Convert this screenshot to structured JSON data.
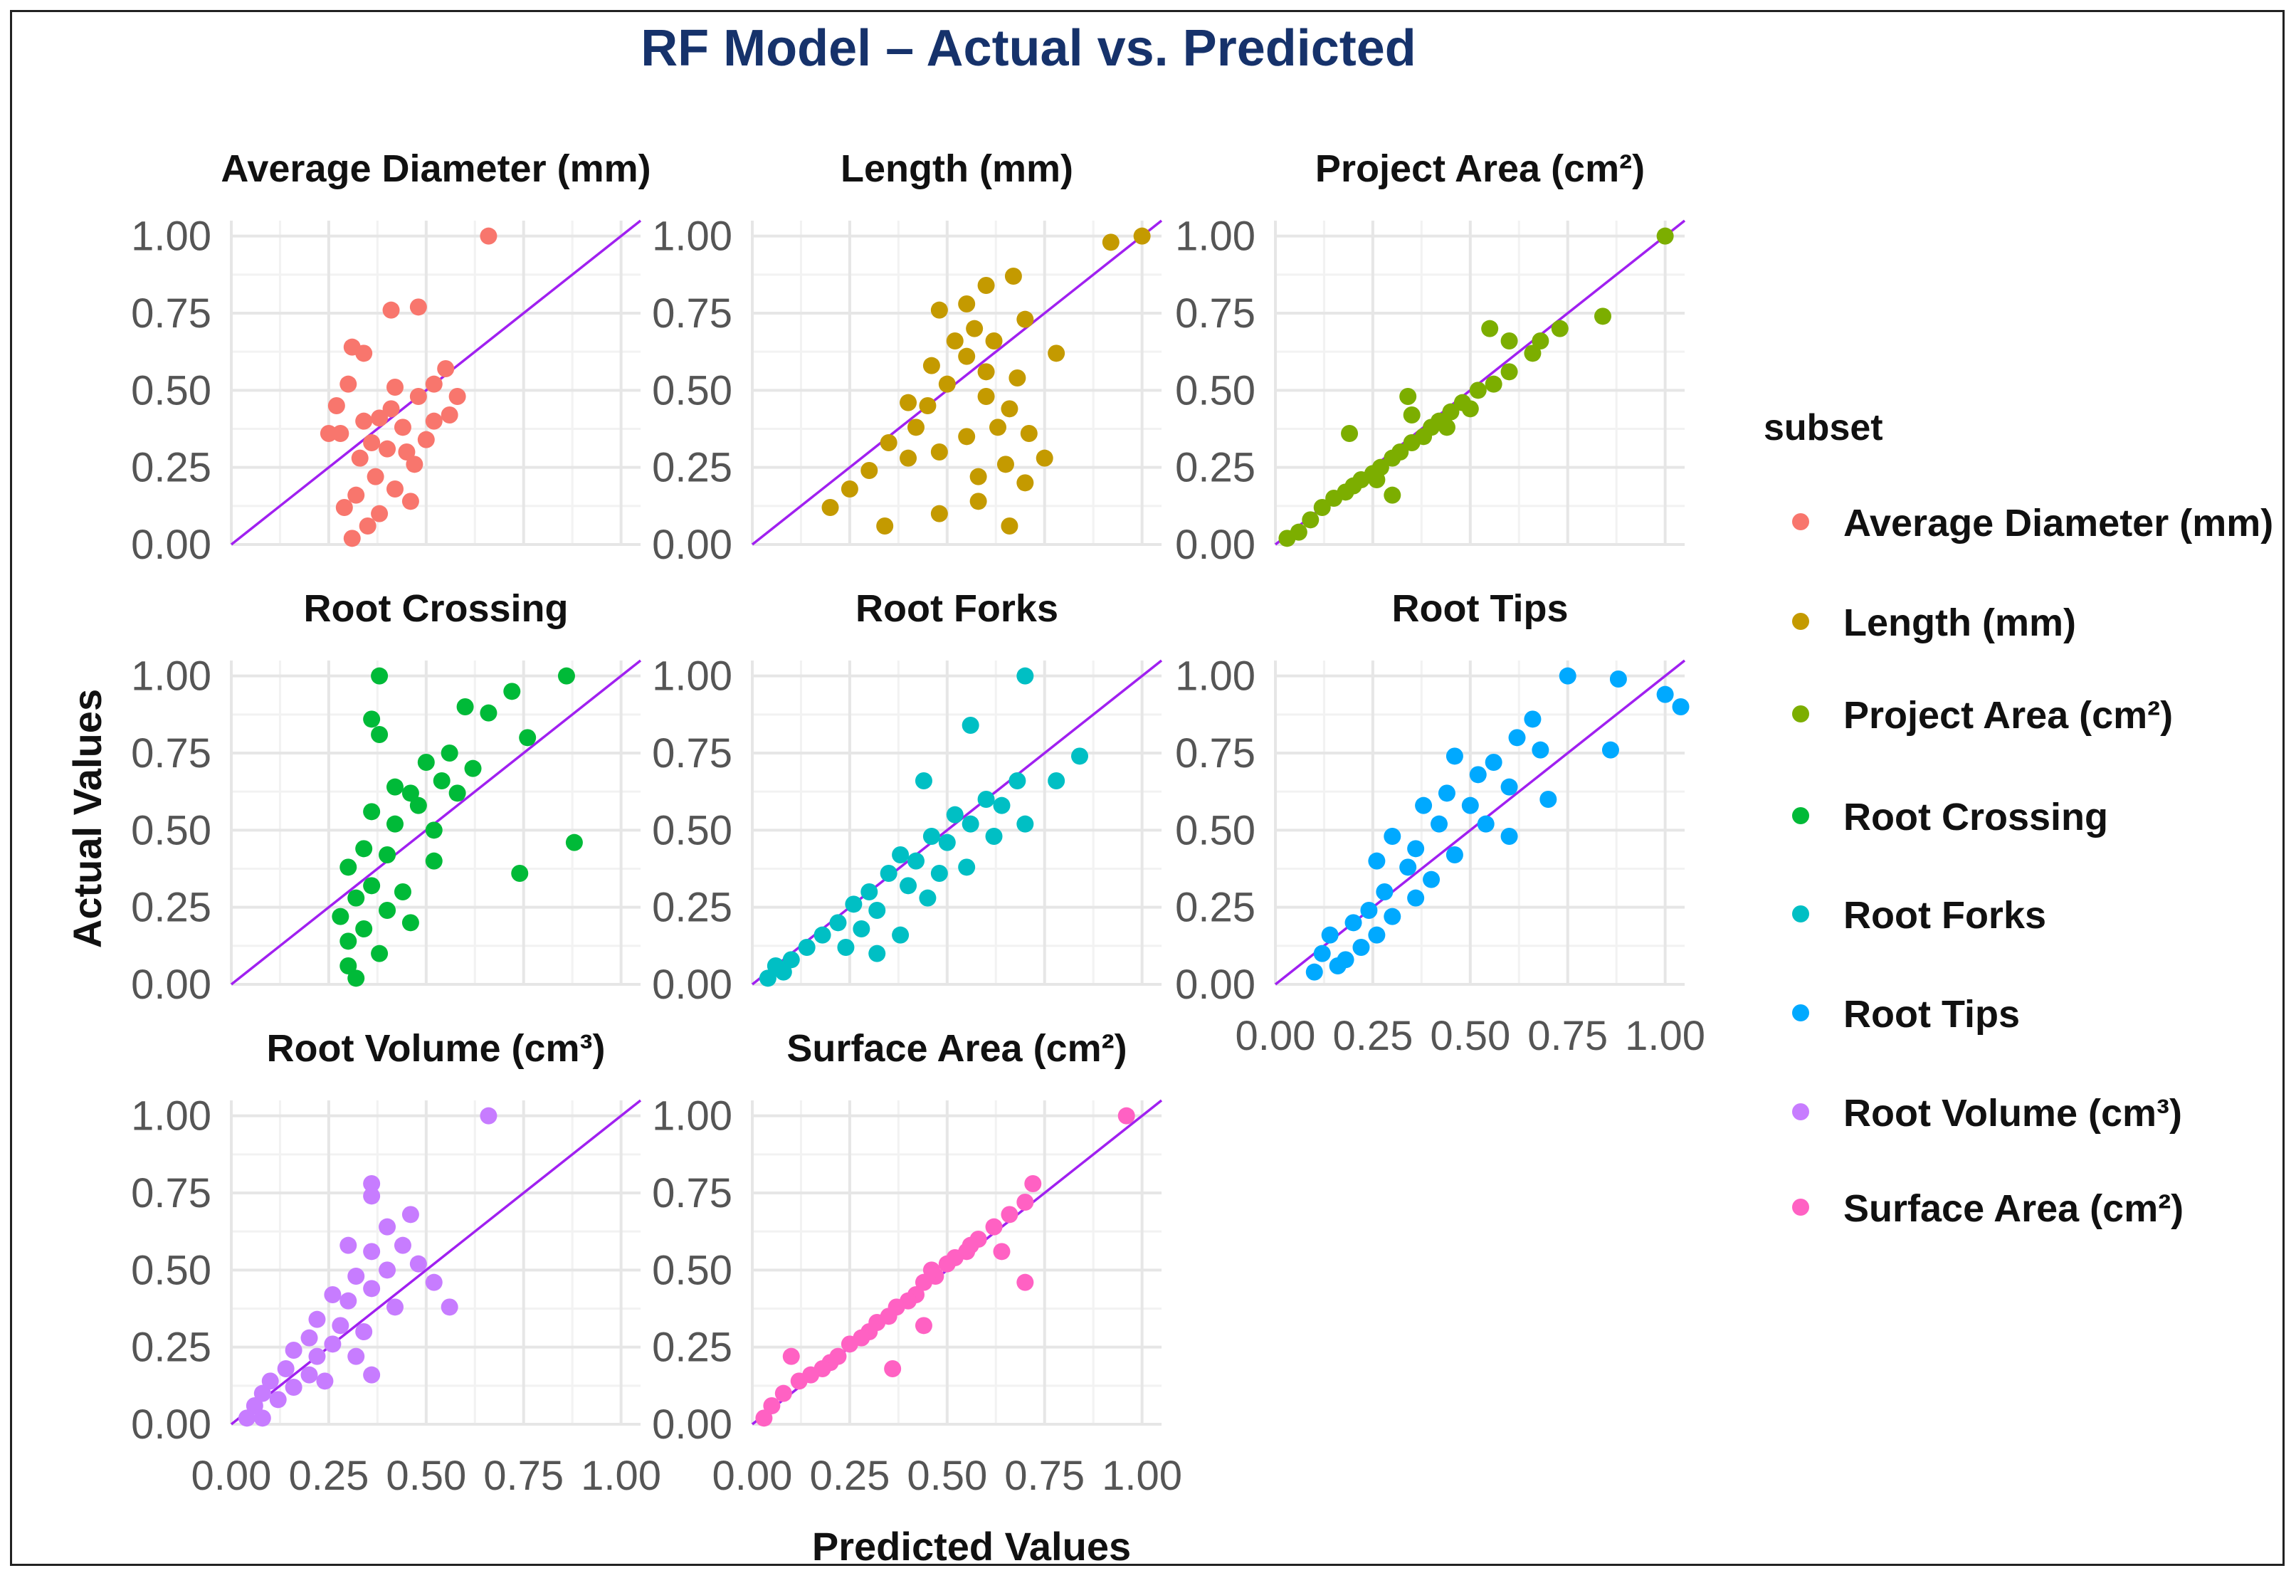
{
  "chart_data": {
    "type": "scatter",
    "title": "RF Model – Actual vs. Predicted",
    "xlabel": "Predicted Values",
    "ylabel": "Actual Values",
    "xlim": [
      0,
      1.05
    ],
    "ylim": [
      0,
      1.05
    ],
    "x_ticks": [
      "0.00",
      "0.25",
      "0.50",
      "0.75",
      "1.00"
    ],
    "y_ticks": [
      "0.00",
      "0.25",
      "0.50",
      "0.75",
      "1.00"
    ],
    "reference_line": {
      "type": "identity",
      "label": "y = x",
      "color": "#a020f0"
    },
    "legend": {
      "title": "subset",
      "placement": "right"
    },
    "series": [
      {
        "name": "Average Diameter (mm)",
        "color": "#f8766d",
        "points": [
          [
            0.66,
            1.0
          ],
          [
            0.41,
            0.76
          ],
          [
            0.48,
            0.77
          ],
          [
            0.31,
            0.64
          ],
          [
            0.34,
            0.62
          ],
          [
            0.42,
            0.51
          ],
          [
            0.48,
            0.48
          ],
          [
            0.55,
            0.57
          ],
          [
            0.27,
            0.45
          ],
          [
            0.3,
            0.52
          ],
          [
            0.38,
            0.41
          ],
          [
            0.44,
            0.38
          ],
          [
            0.36,
            0.33
          ],
          [
            0.4,
            0.31
          ],
          [
            0.33,
            0.28
          ],
          [
            0.45,
            0.3
          ],
          [
            0.5,
            0.34
          ],
          [
            0.28,
            0.36
          ],
          [
            0.25,
            0.36
          ],
          [
            0.37,
            0.22
          ],
          [
            0.42,
            0.18
          ],
          [
            0.32,
            0.16
          ],
          [
            0.46,
            0.14
          ],
          [
            0.35,
            0.06
          ],
          [
            0.31,
            0.02
          ],
          [
            0.38,
            0.1
          ],
          [
            0.52,
            0.4
          ],
          [
            0.56,
            0.42
          ],
          [
            0.58,
            0.48
          ],
          [
            0.52,
            0.52
          ],
          [
            0.29,
            0.12
          ],
          [
            0.41,
            0.44
          ],
          [
            0.47,
            0.26
          ],
          [
            0.34,
            0.4
          ]
        ]
      },
      {
        "name": "Length (mm)",
        "color": "#c49a00",
        "points": [
          [
            1.0,
            1.0
          ],
          [
            0.92,
            0.98
          ],
          [
            0.67,
            0.87
          ],
          [
            0.6,
            0.84
          ],
          [
            0.55,
            0.78
          ],
          [
            0.48,
            0.76
          ],
          [
            0.7,
            0.73
          ],
          [
            0.57,
            0.7
          ],
          [
            0.62,
            0.66
          ],
          [
            0.55,
            0.61
          ],
          [
            0.78,
            0.62
          ],
          [
            0.68,
            0.54
          ],
          [
            0.5,
            0.52
          ],
          [
            0.45,
            0.45
          ],
          [
            0.6,
            0.48
          ],
          [
            0.66,
            0.44
          ],
          [
            0.42,
            0.38
          ],
          [
            0.35,
            0.33
          ],
          [
            0.55,
            0.35
          ],
          [
            0.63,
            0.38
          ],
          [
            0.71,
            0.36
          ],
          [
            0.3,
            0.24
          ],
          [
            0.25,
            0.18
          ],
          [
            0.2,
            0.12
          ],
          [
            0.4,
            0.28
          ],
          [
            0.48,
            0.3
          ],
          [
            0.58,
            0.22
          ],
          [
            0.65,
            0.26
          ],
          [
            0.7,
            0.2
          ],
          [
            0.34,
            0.06
          ],
          [
            0.48,
            0.1
          ],
          [
            0.58,
            0.14
          ],
          [
            0.66,
            0.06
          ],
          [
            0.75,
            0.28
          ],
          [
            0.46,
            0.58
          ],
          [
            0.4,
            0.46
          ],
          [
            0.52,
            0.66
          ],
          [
            0.6,
            0.56
          ]
        ]
      },
      {
        "name": "Project Area (cm²)",
        "color": "#7cae00",
        "points": [
          [
            1.0,
            1.0
          ],
          [
            0.84,
            0.74
          ],
          [
            0.73,
            0.7
          ],
          [
            0.66,
            0.62
          ],
          [
            0.6,
            0.56
          ],
          [
            0.56,
            0.52
          ],
          [
            0.52,
            0.5
          ],
          [
            0.48,
            0.46
          ],
          [
            0.45,
            0.43
          ],
          [
            0.42,
            0.4
          ],
          [
            0.4,
            0.38
          ],
          [
            0.38,
            0.35
          ],
          [
            0.35,
            0.33
          ],
          [
            0.32,
            0.3
          ],
          [
            0.3,
            0.28
          ],
          [
            0.27,
            0.25
          ],
          [
            0.25,
            0.23
          ],
          [
            0.22,
            0.21
          ],
          [
            0.2,
            0.19
          ],
          [
            0.18,
            0.17
          ],
          [
            0.15,
            0.15
          ],
          [
            0.12,
            0.12
          ],
          [
            0.09,
            0.08
          ],
          [
            0.06,
            0.04
          ],
          [
            0.03,
            0.02
          ],
          [
            0.19,
            0.36
          ],
          [
            0.34,
            0.48
          ],
          [
            0.55,
            0.7
          ],
          [
            0.6,
            0.66
          ],
          [
            0.5,
            0.44
          ],
          [
            0.44,
            0.38
          ],
          [
            0.26,
            0.21
          ],
          [
            0.35,
            0.42
          ],
          [
            0.68,
            0.66
          ],
          [
            0.3,
            0.16
          ]
        ]
      },
      {
        "name": "Root Crossing",
        "color": "#00ba38",
        "points": [
          [
            0.86,
            1.0
          ],
          [
            0.38,
            1.0
          ],
          [
            0.72,
            0.95
          ],
          [
            0.6,
            0.9
          ],
          [
            0.36,
            0.86
          ],
          [
            0.66,
            0.88
          ],
          [
            0.38,
            0.81
          ],
          [
            0.76,
            0.8
          ],
          [
            0.56,
            0.75
          ],
          [
            0.62,
            0.7
          ],
          [
            0.5,
            0.72
          ],
          [
            0.54,
            0.66
          ],
          [
            0.46,
            0.62
          ],
          [
            0.48,
            0.58
          ],
          [
            0.36,
            0.56
          ],
          [
            0.42,
            0.52
          ],
          [
            0.52,
            0.5
          ],
          [
            0.34,
            0.44
          ],
          [
            0.4,
            0.42
          ],
          [
            0.88,
            0.46
          ],
          [
            0.74,
            0.36
          ],
          [
            0.3,
            0.38
          ],
          [
            0.36,
            0.32
          ],
          [
            0.44,
            0.3
          ],
          [
            0.32,
            0.28
          ],
          [
            0.4,
            0.24
          ],
          [
            0.28,
            0.22
          ],
          [
            0.34,
            0.18
          ],
          [
            0.46,
            0.2
          ],
          [
            0.3,
            0.14
          ],
          [
            0.38,
            0.1
          ],
          [
            0.3,
            0.06
          ],
          [
            0.32,
            0.02
          ],
          [
            0.58,
            0.62
          ],
          [
            0.52,
            0.4
          ],
          [
            0.42,
            0.64
          ]
        ]
      },
      {
        "name": "Root Forks",
        "color": "#00bfc4",
        "points": [
          [
            0.7,
            1.0
          ],
          [
            0.56,
            0.84
          ],
          [
            0.84,
            0.74
          ],
          [
            0.78,
            0.66
          ],
          [
            0.68,
            0.66
          ],
          [
            0.44,
            0.66
          ],
          [
            0.6,
            0.6
          ],
          [
            0.64,
            0.58
          ],
          [
            0.52,
            0.55
          ],
          [
            0.56,
            0.52
          ],
          [
            0.7,
            0.52
          ],
          [
            0.46,
            0.48
          ],
          [
            0.5,
            0.46
          ],
          [
            0.38,
            0.42
          ],
          [
            0.42,
            0.4
          ],
          [
            0.55,
            0.38
          ],
          [
            0.35,
            0.36
          ],
          [
            0.4,
            0.32
          ],
          [
            0.3,
            0.3
          ],
          [
            0.45,
            0.28
          ],
          [
            0.26,
            0.26
          ],
          [
            0.32,
            0.24
          ],
          [
            0.22,
            0.2
          ],
          [
            0.28,
            0.18
          ],
          [
            0.38,
            0.16
          ],
          [
            0.18,
            0.16
          ],
          [
            0.24,
            0.12
          ],
          [
            0.14,
            0.12
          ],
          [
            0.32,
            0.1
          ],
          [
            0.1,
            0.08
          ],
          [
            0.06,
            0.06
          ],
          [
            0.04,
            0.02
          ],
          [
            0.08,
            0.04
          ],
          [
            0.62,
            0.48
          ],
          [
            0.48,
            0.36
          ]
        ]
      },
      {
        "name": "Root Tips",
        "color": "#00a9ff",
        "points": [
          [
            0.75,
            1.0
          ],
          [
            0.88,
            0.99
          ],
          [
            1.0,
            0.94
          ],
          [
            1.04,
            0.9
          ],
          [
            0.66,
            0.86
          ],
          [
            0.86,
            0.76
          ],
          [
            0.62,
            0.8
          ],
          [
            0.68,
            0.76
          ],
          [
            0.56,
            0.72
          ],
          [
            0.46,
            0.74
          ],
          [
            0.52,
            0.68
          ],
          [
            0.6,
            0.64
          ],
          [
            0.44,
            0.62
          ],
          [
            0.5,
            0.58
          ],
          [
            0.38,
            0.58
          ],
          [
            0.54,
            0.52
          ],
          [
            0.42,
            0.52
          ],
          [
            0.6,
            0.48
          ],
          [
            0.3,
            0.48
          ],
          [
            0.36,
            0.44
          ],
          [
            0.46,
            0.42
          ],
          [
            0.26,
            0.4
          ],
          [
            0.34,
            0.38
          ],
          [
            0.4,
            0.34
          ],
          [
            0.28,
            0.3
          ],
          [
            0.36,
            0.28
          ],
          [
            0.24,
            0.24
          ],
          [
            0.3,
            0.22
          ],
          [
            0.2,
            0.2
          ],
          [
            0.26,
            0.16
          ],
          [
            0.14,
            0.16
          ],
          [
            0.22,
            0.12
          ],
          [
            0.12,
            0.1
          ],
          [
            0.18,
            0.08
          ],
          [
            0.1,
            0.04
          ],
          [
            0.16,
            0.06
          ],
          [
            0.7,
            0.6
          ]
        ]
      },
      {
        "name": "Root Volume (cm³)",
        "color": "#c77cff",
        "points": [
          [
            0.66,
            1.0
          ],
          [
            0.36,
            0.78
          ],
          [
            0.36,
            0.74
          ],
          [
            0.46,
            0.68
          ],
          [
            0.4,
            0.64
          ],
          [
            0.44,
            0.58
          ],
          [
            0.36,
            0.56
          ],
          [
            0.48,
            0.52
          ],
          [
            0.4,
            0.5
          ],
          [
            0.32,
            0.48
          ],
          [
            0.52,
            0.46
          ],
          [
            0.36,
            0.44
          ],
          [
            0.26,
            0.42
          ],
          [
            0.3,
            0.4
          ],
          [
            0.42,
            0.38
          ],
          [
            0.56,
            0.38
          ],
          [
            0.22,
            0.34
          ],
          [
            0.28,
            0.32
          ],
          [
            0.34,
            0.3
          ],
          [
            0.2,
            0.28
          ],
          [
            0.26,
            0.26
          ],
          [
            0.16,
            0.24
          ],
          [
            0.22,
            0.22
          ],
          [
            0.32,
            0.22
          ],
          [
            0.14,
            0.18
          ],
          [
            0.2,
            0.16
          ],
          [
            0.1,
            0.14
          ],
          [
            0.16,
            0.12
          ],
          [
            0.24,
            0.14
          ],
          [
            0.08,
            0.1
          ],
          [
            0.12,
            0.08
          ],
          [
            0.06,
            0.06
          ],
          [
            0.04,
            0.02
          ],
          [
            0.08,
            0.02
          ],
          [
            0.36,
            0.16
          ],
          [
            0.3,
            0.58
          ]
        ]
      },
      {
        "name": "Surface Area (cm²)",
        "color": "#ff61c3",
        "points": [
          [
            0.96,
            1.0
          ],
          [
            0.72,
            0.78
          ],
          [
            0.7,
            0.72
          ],
          [
            0.66,
            0.68
          ],
          [
            0.62,
            0.64
          ],
          [
            0.58,
            0.6
          ],
          [
            0.55,
            0.56
          ],
          [
            0.52,
            0.54
          ],
          [
            0.5,
            0.52
          ],
          [
            0.47,
            0.48
          ],
          [
            0.44,
            0.46
          ],
          [
            0.42,
            0.42
          ],
          [
            0.4,
            0.4
          ],
          [
            0.37,
            0.38
          ],
          [
            0.35,
            0.35
          ],
          [
            0.32,
            0.33
          ],
          [
            0.3,
            0.3
          ],
          [
            0.28,
            0.28
          ],
          [
            0.25,
            0.26
          ],
          [
            0.22,
            0.22
          ],
          [
            0.2,
            0.2
          ],
          [
            0.18,
            0.18
          ],
          [
            0.15,
            0.16
          ],
          [
            0.12,
            0.14
          ],
          [
            0.1,
            0.22
          ],
          [
            0.08,
            0.1
          ],
          [
            0.05,
            0.06
          ],
          [
            0.03,
            0.02
          ],
          [
            0.64,
            0.56
          ],
          [
            0.7,
            0.46
          ],
          [
            0.44,
            0.32
          ],
          [
            0.36,
            0.18
          ],
          [
            0.46,
            0.5
          ],
          [
            0.56,
            0.58
          ]
        ]
      }
    ]
  }
}
